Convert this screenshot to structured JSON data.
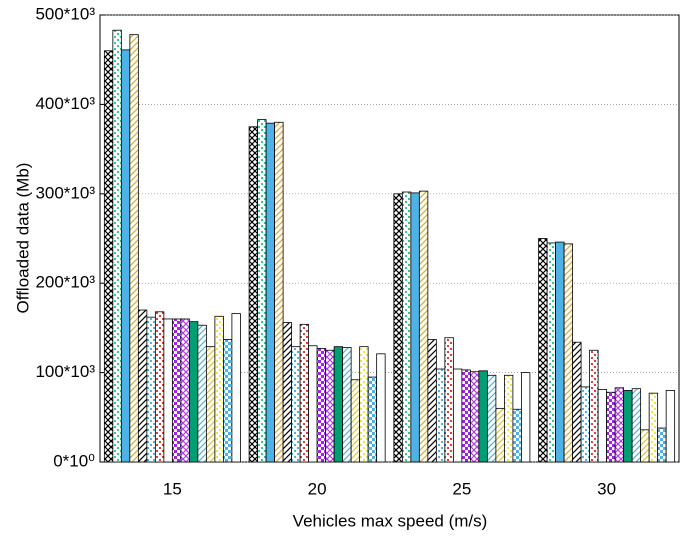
{
  "chart_data": {
    "type": "bar",
    "x_label": "Vehicles max speed (m/s)",
    "y_label": "Offloaded data (Mb)",
    "categories": [
      "15",
      "20",
      "25",
      "30"
    ],
    "ylim": [
      0,
      500000
    ],
    "yticks": [
      {
        "value": 0,
        "label": "0*10⁰"
      },
      {
        "value": 100000,
        "label": "100*10³"
      },
      {
        "value": 200000,
        "label": "200*10³"
      },
      {
        "value": 300000,
        "label": "300*10³"
      },
      {
        "value": 400000,
        "label": "400*10³"
      },
      {
        "value": 500000,
        "label": "500*10³"
      }
    ],
    "grid": true,
    "series": [
      {
        "color": "#000000",
        "hatch": "cross",
        "values": [
          460000,
          375000,
          300000,
          250000
        ]
      },
      {
        "color": "#2ecc8e",
        "hatch": "dots",
        "values": [
          483000,
          383000,
          302000,
          245000
        ]
      },
      {
        "color": "#4db3e6",
        "hatch": "solid",
        "values": [
          461000,
          379000,
          301000,
          246000
        ]
      },
      {
        "color": "#e6a817",
        "hatch": "diag",
        "values": [
          478000,
          380000,
          303000,
          244000
        ]
      },
      {
        "color": "#000000",
        "hatch": "diag",
        "values": [
          170000,
          156000,
          137000,
          134000
        ]
      },
      {
        "color": "#4db3e6",
        "hatch": "dots",
        "values": [
          162000,
          129000,
          104000,
          84000
        ]
      },
      {
        "color": "#e03c3c",
        "hatch": "dots",
        "values": [
          168000,
          154000,
          139000,
          125000
        ]
      },
      {
        "color": "#ffffff",
        "hatch": "solid",
        "values": [
          160000,
          130000,
          104000,
          81000
        ]
      },
      {
        "color": "#a020f0",
        "hatch": "check",
        "values": [
          160000,
          127000,
          103000,
          78000
        ]
      },
      {
        "color": "#b040e0",
        "hatch": "cross",
        "values": [
          160000,
          125000,
          101000,
          83000
        ]
      },
      {
        "color": "#009e73",
        "hatch": "solid",
        "values": [
          157000,
          129000,
          102000,
          80000
        ]
      },
      {
        "color": "#4db3e6",
        "hatch": "diag",
        "values": [
          153000,
          128000,
          97000,
          82000
        ]
      },
      {
        "color": "#e6c817",
        "hatch": "diag",
        "values": [
          129000,
          92000,
          60000,
          36000
        ]
      },
      {
        "color": "#f0e442",
        "hatch": "dots",
        "values": [
          163000,
          129000,
          97000,
          77000
        ]
      },
      {
        "color": "#4db3e6",
        "hatch": "check",
        "values": [
          137000,
          95000,
          59000,
          38000
        ]
      },
      {
        "color": "#ffffff",
        "hatch": "solid",
        "values": [
          166000,
          121000,
          100000,
          80000
        ]
      }
    ]
  }
}
